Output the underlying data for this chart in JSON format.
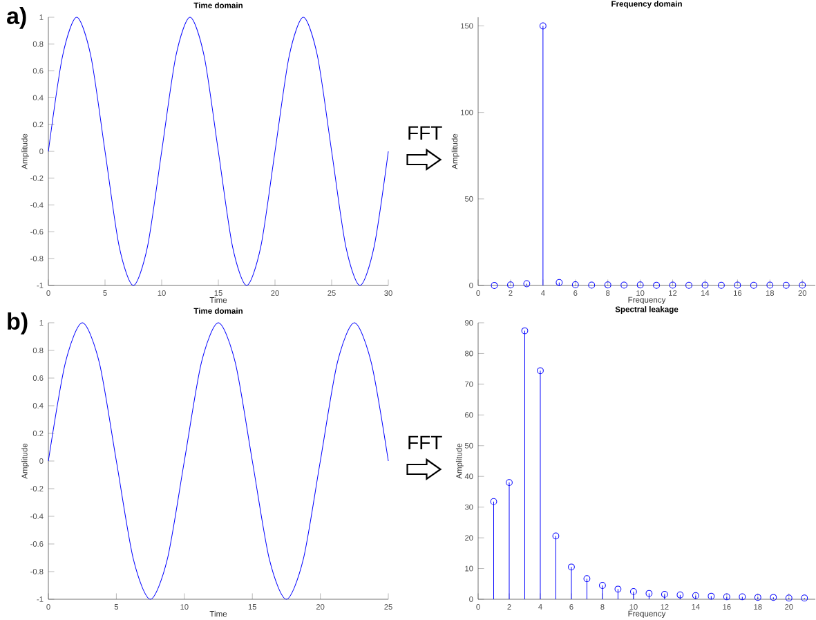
{
  "chart_data": [
    {
      "type": "line",
      "title": "Time domain",
      "xlabel": "Time",
      "ylabel": "Amplitude",
      "annotations": [
        "a)"
      ],
      "x": [
        0,
        1.25,
        2.5,
        3.75,
        5,
        6.25,
        7.5,
        8.75,
        10,
        11.25,
        12.5,
        13.75,
        15,
        16.25,
        17.5,
        18.75,
        20,
        21.25,
        22.5,
        23.75,
        25,
        26.25,
        27.5,
        28.75,
        30
      ],
      "series": [
        {
          "color": "#0000ff",
          "values": [
            0,
            0.71,
            1,
            0.71,
            0,
            -0.71,
            -1,
            -0.71,
            0,
            0.71,
            1,
            0.71,
            0,
            -0.71,
            -1,
            -0.71,
            0,
            0.71,
            1,
            0.71,
            0,
            -0.71,
            -1,
            -0.71,
            0
          ]
        }
      ],
      "xlim": [
        0,
        30
      ],
      "ylim": [
        -1,
        1
      ],
      "xticks": [
        0,
        5,
        10,
        15,
        20,
        25,
        30
      ],
      "yticks": [
        -1,
        -0.8,
        -0.6,
        -0.4,
        -0.2,
        0,
        0.2,
        0.4,
        0.6,
        0.8,
        1
      ],
      "marker": "none",
      "line_style": "solid"
    },
    {
      "type": "lollipop",
      "title": "Frequency domain",
      "xlabel": "Frequency",
      "ylabel": "Amplitude",
      "annotations": [
        "FFT"
      ],
      "x": [
        1,
        2,
        3,
        4,
        5,
        6,
        7,
        8,
        9,
        10,
        11,
        12,
        13,
        14,
        15,
        16,
        17,
        18,
        19,
        20
      ],
      "series": [
        {
          "color": "#0000ff",
          "values": [
            0,
            0.3,
            1,
            150,
            1.7,
            0.4,
            0.2,
            0.3,
            0.2,
            0.3,
            0.1,
            0.2,
            0.1,
            0.2,
            0.1,
            0.2,
            0.1,
            0.2,
            0.1,
            0.2
          ]
        }
      ],
      "xlim": [
        0,
        20.8
      ],
      "ylim": [
        0,
        155
      ],
      "xticks": [
        0,
        2,
        4,
        6,
        8,
        10,
        12,
        14,
        16,
        18,
        20
      ],
      "yticks": [
        0,
        50,
        100,
        150
      ],
      "marker": "circle"
    },
    {
      "type": "line",
      "title": "Time domain",
      "xlabel": "Time",
      "ylabel": "Amplitude",
      "annotations": [
        "b)"
      ],
      "x": [
        0,
        1.25,
        2.5,
        3.75,
        5,
        6.25,
        7.5,
        8.75,
        10,
        11.25,
        12.5,
        13.75,
        15,
        16.25,
        17.5,
        18.75,
        20,
        21.25,
        22.5,
        23.75,
        25
      ],
      "series": [
        {
          "color": "#0000ff",
          "values": [
            0,
            0.71,
            1,
            0.71,
            0,
            -0.71,
            -1,
            -0.71,
            0,
            0.71,
            1,
            0.71,
            0,
            -0.71,
            -1,
            -0.71,
            0,
            0.71,
            1,
            0.71,
            0
          ]
        }
      ],
      "xlim": [
        0,
        25
      ],
      "ylim": [
        -1,
        1
      ],
      "xticks": [
        0,
        5,
        10,
        15,
        20,
        25
      ],
      "yticks": [
        -1,
        -0.8,
        -0.6,
        -0.4,
        -0.2,
        0,
        0.2,
        0.4,
        0.6,
        0.8,
        1
      ],
      "marker": "none",
      "line_style": "solid"
    },
    {
      "type": "lollipop",
      "title": "Spectral leakage",
      "xlabel": "Frequency",
      "ylabel": "Amplitude",
      "annotations": [
        "FFT"
      ],
      "x": [
        1,
        2,
        3,
        4,
        5,
        6,
        7,
        8,
        9,
        10,
        11,
        12,
        13,
        14,
        15,
        16,
        17,
        18,
        19,
        20,
        21
      ],
      "series": [
        {
          "color": "#0000ff",
          "values": [
            31.8,
            38,
            87.4,
            74.4,
            20.6,
            10.5,
            6.7,
            4.5,
            3.3,
            2.5,
            1.9,
            1.6,
            1.4,
            1.2,
            1.0,
            0.8,
            0.8,
            0.6,
            0.6,
            0.4,
            0.4
          ]
        }
      ],
      "xlim": [
        0,
        21.7
      ],
      "ylim": [
        0,
        90
      ],
      "xticks": [
        0,
        2,
        4,
        6,
        8,
        10,
        12,
        14,
        16,
        18,
        20
      ],
      "yticks": [
        0,
        10,
        20,
        30,
        40,
        50,
        60,
        70,
        80,
        90
      ],
      "marker": "circle"
    }
  ]
}
